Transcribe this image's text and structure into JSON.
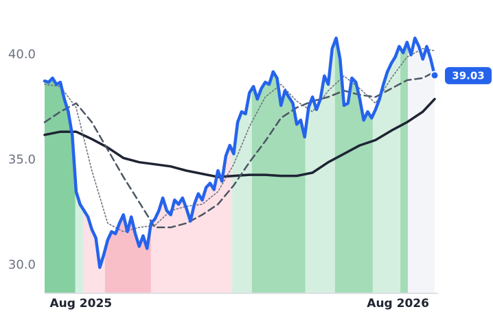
{
  "chart_data": {
    "type": "line",
    "xlim": [
      0,
      99
    ],
    "xticks": [
      {
        "value": 9.2,
        "label": "Aug 2025"
      },
      {
        "value": 89.7,
        "label": "Aug 2026"
      }
    ],
    "ylim": [
      28.7,
      41.6
    ],
    "yticks": [
      {
        "value": 30,
        "label": "30.0"
      },
      {
        "value": 35,
        "label": "35.0"
      },
      {
        "value": 40,
        "label": "40.0"
      }
    ],
    "zones": [
      {
        "start": 0,
        "end": 7.8,
        "color": "#86cfa1"
      },
      {
        "start": 7.8,
        "end": 9.9,
        "color": "#d4efdf"
      },
      {
        "start": 9.9,
        "end": 15.3,
        "color": "#fde1e6"
      },
      {
        "start": 15.3,
        "end": 27,
        "color": "#f8bfc9"
      },
      {
        "start": 27,
        "end": 47.6,
        "color": "#fde1e6"
      },
      {
        "start": 47.6,
        "end": 52.6,
        "color": "#d4efdf"
      },
      {
        "start": 52.6,
        "end": 66.2,
        "color": "#a4dcb8"
      },
      {
        "start": 66.2,
        "end": 73.7,
        "color": "#d4efdf"
      },
      {
        "start": 73.7,
        "end": 83.3,
        "color": "#a4dcb8"
      },
      {
        "start": 83.3,
        "end": 90.3,
        "color": "#d4efdf"
      },
      {
        "start": 90.3,
        "end": 92.2,
        "color": "#a4dcb8"
      },
      {
        "start": 92.2,
        "end": 99,
        "color": "#f4f5f8"
      }
    ],
    "series": [
      {
        "color": "#2563eb",
        "style": "price",
        "x": [
          0,
          1,
          2,
          3,
          4,
          5,
          6,
          7,
          8,
          9,
          10,
          11,
          12,
          13,
          14,
          15,
          16,
          17,
          18,
          19,
          20,
          21,
          22,
          23,
          24,
          25,
          26,
          27,
          28,
          29,
          30,
          31,
          32,
          33,
          34,
          35,
          36,
          37,
          38,
          39,
          40,
          41,
          42,
          43,
          44,
          45,
          46,
          47,
          48,
          49,
          50,
          51,
          52,
          53,
          54,
          55,
          56,
          57,
          58,
          59,
          60,
          61,
          62,
          63,
          64,
          65,
          66,
          67,
          68,
          69,
          70,
          71,
          72,
          73,
          74,
          75,
          76,
          77,
          78,
          79,
          80,
          81,
          82,
          83,
          84,
          85,
          86,
          87,
          88,
          89,
          90,
          91,
          92,
          93,
          94,
          95,
          96,
          97,
          98,
          99
        ],
        "values": [
          38.76,
          38.7,
          38.9,
          38.6,
          38.7,
          37.9,
          37.3,
          36.2,
          33.5,
          32.9,
          32.6,
          32.3,
          31.7,
          31.3,
          29.9,
          30.5,
          31.2,
          31.6,
          31.5,
          32.0,
          32.4,
          31.6,
          32.3,
          31.5,
          30.9,
          31.4,
          30.8,
          32.0,
          32.2,
          32.6,
          33.2,
          32.6,
          32.4,
          33.1,
          32.9,
          33.2,
          32.7,
          32.1,
          32.9,
          33.4,
          33.1,
          33.7,
          33.9,
          33.6,
          34.5,
          34.0,
          35.2,
          35.7,
          35.3,
          36.8,
          37.3,
          37.2,
          38.2,
          38.5,
          37.9,
          38.4,
          38.7,
          38.6,
          39.2,
          38.9,
          37.6,
          38.3,
          38.0,
          37.7,
          36.7,
          36.9,
          36.1,
          37.5,
          38.0,
          37.4,
          37.9,
          39.0,
          38.6,
          40.3,
          40.8,
          39.8,
          37.6,
          37.7,
          38.9,
          38.7,
          37.9,
          36.9,
          37.3,
          37.0,
          37.4,
          37.9,
          38.6,
          39.2,
          39.6,
          39.9,
          40.4,
          40.1,
          40.6,
          40.0,
          40.8,
          40.4,
          39.8,
          40.4,
          39.8,
          39.03
        ]
      },
      {
        "color": "#1e2433",
        "style": "solid",
        "x": [
          0,
          4,
          8,
          12,
          16,
          20,
          24,
          28,
          32,
          36,
          40,
          44,
          48,
          52,
          56,
          60,
          64,
          68,
          72,
          76,
          80,
          84,
          88,
          92,
          96,
          99
        ],
        "values": [
          36.2,
          36.35,
          36.35,
          36.0,
          35.6,
          35.1,
          34.9,
          34.8,
          34.7,
          34.5,
          34.35,
          34.2,
          34.25,
          34.3,
          34.3,
          34.25,
          34.25,
          34.4,
          34.9,
          35.3,
          35.7,
          35.95,
          36.4,
          36.8,
          37.3,
          37.9
        ]
      },
      {
        "color": "#4b5563",
        "style": "dashed",
        "x": [
          0,
          4,
          8,
          12,
          16,
          20,
          24,
          28,
          32,
          36,
          40,
          44,
          48,
          52,
          56,
          60,
          64,
          68,
          72,
          76,
          80,
          84,
          88,
          92,
          96,
          99
        ],
        "values": [
          36.8,
          37.3,
          37.7,
          36.8,
          35.5,
          34.2,
          33.0,
          31.8,
          31.8,
          32.0,
          32.4,
          32.9,
          33.8,
          34.9,
          35.9,
          37.0,
          37.5,
          37.8,
          38.0,
          38.3,
          38.1,
          38.0,
          38.4,
          38.8,
          38.9,
          39.2
        ]
      },
      {
        "color": "#6b7280",
        "style": "dotted",
        "x": [
          0,
          4,
          8,
          12,
          16,
          20,
          24,
          28,
          32,
          36,
          40,
          44,
          48,
          52,
          56,
          60,
          64,
          68,
          72,
          76,
          80,
          84,
          88,
          92,
          96,
          99
        ],
        "values": [
          38.6,
          38.5,
          37.5,
          34.5,
          32.0,
          31.6,
          31.8,
          31.9,
          32.6,
          32.8,
          32.9,
          33.5,
          34.8,
          36.6,
          38.0,
          38.6,
          37.8,
          37.3,
          38.3,
          39.0,
          38.4,
          37.7,
          38.9,
          39.9,
          40.3,
          40.2
        ]
      }
    ]
  }
}
